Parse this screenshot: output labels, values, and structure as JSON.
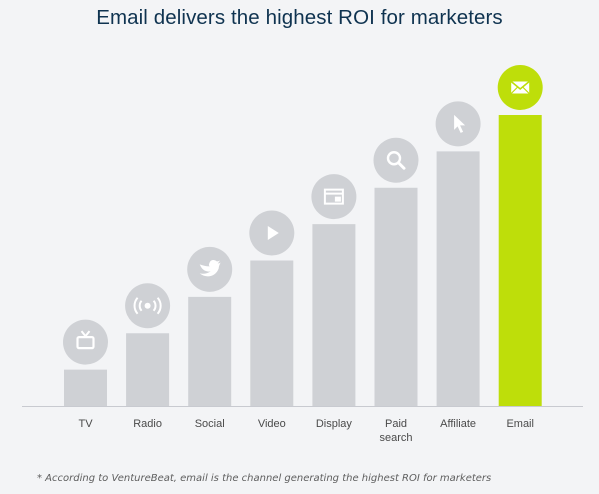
{
  "title": "Email delivers the highest ROI for marketers",
  "footnote": "* According to VentureBeat, email is the channel generating the highest ROI for marketers",
  "colors": {
    "bar": "#cfd1d5",
    "highlight": "#bede0a",
    "icon_circle": "#cfd1d5",
    "icon_glyph": "#ffffff",
    "axis": "#c8cad0"
  },
  "chart_data": {
    "type": "bar",
    "title": "Email delivers the highest ROI for marketers",
    "xlabel": "",
    "ylabel": "",
    "categories": [
      "TV",
      "Radio",
      "Social",
      "Video",
      "Display",
      "Paid search",
      "Affiliate",
      "Email"
    ],
    "category_lines": [
      [
        "TV"
      ],
      [
        "Radio"
      ],
      [
        "Social"
      ],
      [
        "Video"
      ],
      [
        "Display"
      ],
      [
        "Paid",
        "search"
      ],
      [
        "Affiliate"
      ],
      [
        "Email"
      ]
    ],
    "values": [
      1,
      2,
      3,
      4,
      5,
      6,
      7,
      8
    ],
    "ylim": [
      0,
      8
    ],
    "icons": [
      "tv-icon",
      "radio-broadcast-icon",
      "twitter-bird-icon",
      "play-icon",
      "display-window-icon",
      "search-icon",
      "cursor-pointer-icon",
      "envelope-icon"
    ],
    "highlight_index": 7,
    "grid": false,
    "legend": "none"
  }
}
